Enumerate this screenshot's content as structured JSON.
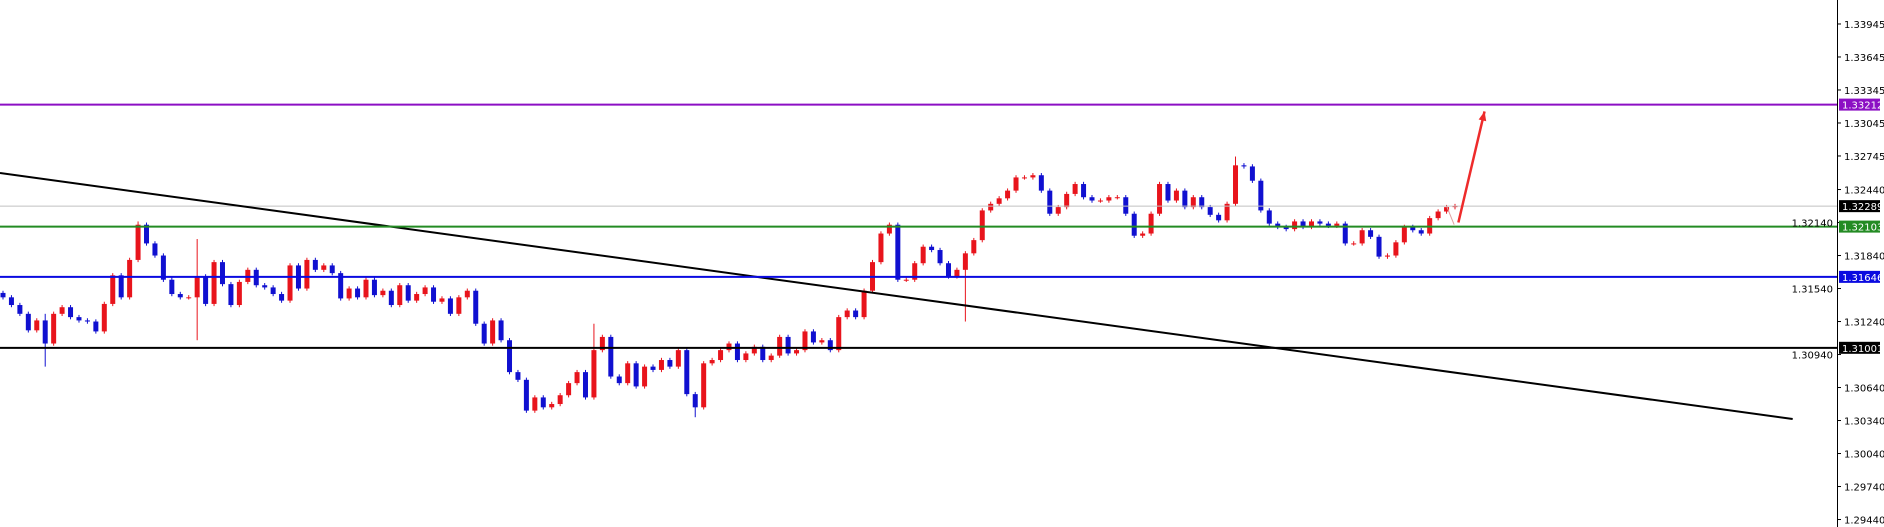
{
  "chart_data": {
    "type": "candlestick",
    "title": "",
    "xlabel": "",
    "ylabel": "",
    "ylim": [
      1.29372,
      1.34163
    ],
    "grid": false,
    "colors": {
      "up": "#e8141c",
      "down": "#1010d0"
    },
    "y_ticks": [
      "1.33945",
      "1.33645",
      "1.33345",
      "1.33045",
      "1.32745",
      "1.32440",
      "1.32140",
      "1.31840",
      "1.31540",
      "1.31240",
      "1.30940",
      "1.30640",
      "1.30340",
      "1.30040",
      "1.29740",
      "1.29440"
    ],
    "first_open": 1.315,
    "close": [
      1.3146,
      1.3139,
      1.3131,
      1.3116,
      1.3125,
      1.3104,
      1.3131,
      1.3137,
      1.3128,
      1.3125,
      1.3124,
      1.3115,
      1.314,
      1.3166,
      1.3146,
      1.318,
      1.3212,
      1.3195,
      1.3184,
      1.3162,
      1.3149,
      1.3146,
      1.3146,
      1.3165,
      1.314,
      1.3178,
      1.3158,
      1.3139,
      1.316,
      1.3171,
      1.3157,
      1.3155,
      1.3149,
      1.3143,
      1.3175,
      1.3154,
      1.318,
      1.3171,
      1.3175,
      1.3168,
      1.3145,
      1.3154,
      1.3146,
      1.3162,
      1.3148,
      1.3152,
      1.3139,
      1.3157,
      1.3143,
      1.3149,
      1.3155,
      1.3142,
      1.3145,
      1.3131,
      1.3146,
      1.3152,
      1.3122,
      1.3104,
      1.3125,
      1.3107,
      1.3078,
      1.3071,
      1.3043,
      1.3055,
      1.3046,
      1.3049,
      1.3057,
      1.3068,
      1.3078,
      1.3055,
      1.3098,
      1.311,
      1.3074,
      1.3068,
      1.3086,
      1.3065,
      1.3083,
      1.308,
      1.3089,
      1.3083,
      1.3098,
      1.3058,
      1.3046,
      1.3086,
      1.3089,
      1.3098,
      1.3104,
      1.3089,
      1.3095,
      1.3101,
      1.3089,
      1.3093,
      1.311,
      1.3095,
      1.3098,
      1.3115,
      1.3105,
      1.3107,
      1.3098,
      1.3128,
      1.3134,
      1.3128,
      1.3152,
      1.3178,
      1.3204,
      1.3212,
      1.3162,
      1.3162,
      1.3177,
      1.3192,
      1.3189,
      1.3177,
      1.3165,
      1.3171,
      1.3186,
      1.3198,
      1.3225,
      1.3231,
      1.3236,
      1.3243,
      1.3255,
      1.3255,
      1.3257,
      1.3243,
      1.3222,
      1.3228,
      1.324,
      1.3249,
      1.3237,
      1.3234,
      1.3234,
      1.3237,
      1.3237,
      1.3222,
      1.3202,
      1.3204,
      1.3222,
      1.3249,
      1.3234,
      1.3243,
      1.3228,
      1.3237,
      1.3228,
      1.3221,
      1.3216,
      1.3231,
      1.3266,
      1.3265,
      1.3252,
      1.3225,
      1.3213,
      1.321,
      1.3208,
      1.3215,
      1.321,
      1.3215,
      1.3213,
      1.3211,
      1.3213,
      1.3195,
      1.3195,
      1.3207,
      1.3201,
      1.3183,
      1.3184,
      1.3196,
      1.321,
      1.3207,
      1.3204,
      1.3218,
      1.3224,
      1.3228,
      1.3229
    ],
    "wicks": {
      "5": [
        1.3131,
        1.3083
      ],
      "16": [
        1.3215,
        1.318
      ],
      "23": [
        1.3199,
        1.3107
      ],
      "70": [
        1.3122,
        1.3053
      ],
      "82": [
        1.3058,
        1.3037
      ],
      "114": [
        1.3188,
        1.3124
      ],
      "146": [
        1.3274,
        1.3229
      ]
    },
    "levels": [
      {
        "price": 1.33212,
        "label": "1.33212",
        "color": "#8c0fc4"
      },
      {
        "price": 1.32103,
        "label": "1.32103",
        "color": "#238b23"
      },
      {
        "price": 1.31646,
        "label": "1.31646",
        "color": "#0a0ae0"
      },
      {
        "price": 1.31001,
        "label": "1.31001",
        "color": "#000000"
      }
    ],
    "current_price": {
      "price": 1.32289,
      "label": "1.32289",
      "color": "#c0c0c0"
    },
    "trendline": {
      "from": [
        0,
        1.3259
      ],
      "to": [
        212,
        1.30354
      ],
      "color": "#000000"
    },
    "projection": {
      "from": [
        171,
        1.3229
      ],
      "to": [
        171.9,
        1.3212
      ],
      "color": "#e0a0a0"
    },
    "arrow": {
      "from": [
        172.4,
        1.3214
      ],
      "to": [
        175.5,
        1.3315
      ],
      "color": "#ee2b2b"
    }
  }
}
